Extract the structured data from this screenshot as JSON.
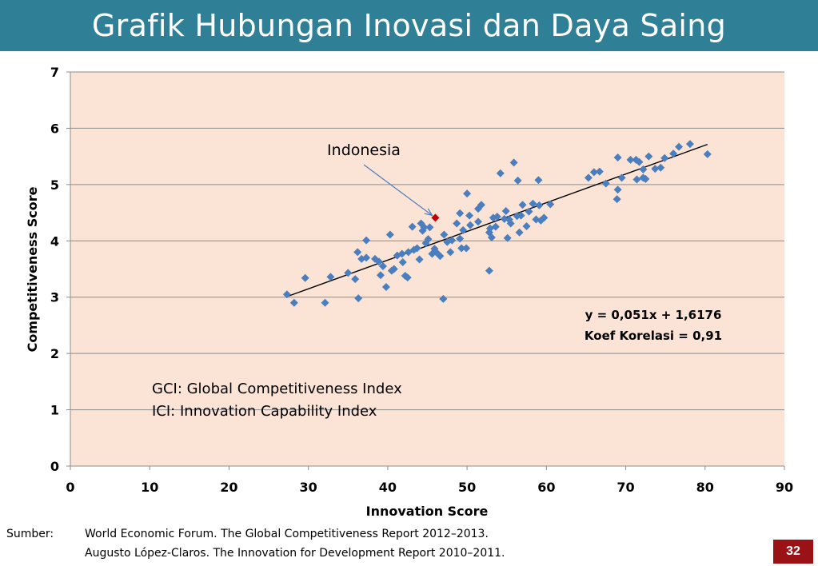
{
  "slide": {
    "title": "Grafik Hubungan Inovasi dan Daya Saing",
    "source_label": "Sumber:",
    "sources": [
      "World Economic Forum. The Global Competitiveness Report  2012–2013.",
      "Augusto López-Claros. The Innovation for Development Report 2010–2011."
    ],
    "page_number": "32"
  },
  "colors": {
    "title_bar": "#2f7f96",
    "plot_background": "#fbe4d5",
    "point": "#4a7ebf",
    "highlight_point": "#c00000",
    "trendline": "#000000",
    "arrow": "#4a7ebf",
    "page_badge": "#9b1216"
  },
  "chart_data": {
    "type": "scatter",
    "xlabel": "Innovation Score",
    "ylabel": "Competitiveness Score",
    "xlim": [
      0,
      90
    ],
    "ylim": [
      0,
      7
    ],
    "xticks": [
      "0",
      "10",
      "20",
      "30",
      "40",
      "50",
      "60",
      "70",
      "80",
      "90"
    ],
    "yticks": [
      "0",
      "1",
      "2",
      "3",
      "4",
      "5",
      "6",
      "7"
    ],
    "grid": "horizontal",
    "trendline": {
      "slope": 0.051,
      "intercept": 1.6176,
      "x_range": [
        27.3,
        80.3
      ]
    },
    "equation_text": "y = 0,051x + 1,6176",
    "correlation_text": "Koef Korelasi = 0,91",
    "annotation": {
      "label": "Indonesia",
      "x": 46.0,
      "y": 4.41
    },
    "notes": [
      "GCI: Global Competitiveness Index",
      "ICI: Innovation Capability Index"
    ],
    "points": [
      [
        27.3,
        3.05
      ],
      [
        28.2,
        2.9
      ],
      [
        29.6,
        3.34
      ],
      [
        32.1,
        2.9
      ],
      [
        32.8,
        3.36
      ],
      [
        35.0,
        3.43
      ],
      [
        35.9,
        3.32
      ],
      [
        36.2,
        3.8
      ],
      [
        36.3,
        2.98
      ],
      [
        36.7,
        3.68
      ],
      [
        37.3,
        3.7
      ],
      [
        37.3,
        4.01
      ],
      [
        38.4,
        3.68
      ],
      [
        38.9,
        3.63
      ],
      [
        39.1,
        3.39
      ],
      [
        39.4,
        3.55
      ],
      [
        39.8,
        3.18
      ],
      [
        40.3,
        4.11
      ],
      [
        40.5,
        3.47
      ],
      [
        40.8,
        3.5
      ],
      [
        41.2,
        3.74
      ],
      [
        41.8,
        3.77
      ],
      [
        41.9,
        3.62
      ],
      [
        42.2,
        3.38
      ],
      [
        42.5,
        3.35
      ],
      [
        42.6,
        3.8
      ],
      [
        43.1,
        4.25
      ],
      [
        43.3,
        3.84
      ],
      [
        43.7,
        3.87
      ],
      [
        44.0,
        3.67
      ],
      [
        44.2,
        4.31
      ],
      [
        44.4,
        4.18
      ],
      [
        44.6,
        4.24
      ],
      [
        44.8,
        3.96
      ],
      [
        45.1,
        4.03
      ],
      [
        45.3,
        4.24
      ],
      [
        45.6,
        3.77
      ],
      [
        45.9,
        3.86
      ],
      [
        46.1,
        3.8
      ],
      [
        46.6,
        3.73
      ],
      [
        47.0,
        2.97
      ],
      [
        47.1,
        4.11
      ],
      [
        47.5,
        3.98
      ],
      [
        47.9,
        3.8
      ],
      [
        48.1,
        4.01
      ],
      [
        48.7,
        4.31
      ],
      [
        49.1,
        4.04
      ],
      [
        49.1,
        4.49
      ],
      [
        49.3,
        3.87
      ],
      [
        49.5,
        4.19
      ],
      [
        49.9,
        3.87
      ],
      [
        50.0,
        4.84
      ],
      [
        50.3,
        4.45
      ],
      [
        50.4,
        4.28
      ],
      [
        51.4,
        4.34
      ],
      [
        51.4,
        4.57
      ],
      [
        51.8,
        4.64
      ],
      [
        52.8,
        3.47
      ],
      [
        52.8,
        4.15
      ],
      [
        52.9,
        4.22
      ],
      [
        53.1,
        4.06
      ],
      [
        53.3,
        4.41
      ],
      [
        53.6,
        4.25
      ],
      [
        53.8,
        4.43
      ],
      [
        54.2,
        5.2
      ],
      [
        54.7,
        4.39
      ],
      [
        54.9,
        4.53
      ],
      [
        55.1,
        4.05
      ],
      [
        55.3,
        4.38
      ],
      [
        55.5,
        4.31
      ],
      [
        55.9,
        5.39
      ],
      [
        56.3,
        4.44
      ],
      [
        56.4,
        5.07
      ],
      [
        56.6,
        4.15
      ],
      [
        56.8,
        4.45
      ],
      [
        57.0,
        4.64
      ],
      [
        57.5,
        4.26
      ],
      [
        57.8,
        4.52
      ],
      [
        58.3,
        4.66
      ],
      [
        58.7,
        4.38
      ],
      [
        59.0,
        5.08
      ],
      [
        59.1,
        4.63
      ],
      [
        59.3,
        4.36
      ],
      [
        59.7,
        4.41
      ],
      [
        60.5,
        4.65
      ],
      [
        65.3,
        5.12
      ],
      [
        66.0,
        5.22
      ],
      [
        66.7,
        5.23
      ],
      [
        67.5,
        5.02
      ],
      [
        68.9,
        4.74
      ],
      [
        69.0,
        4.91
      ],
      [
        69.0,
        5.48
      ],
      [
        69.5,
        5.12
      ],
      [
        70.6,
        5.44
      ],
      [
        71.3,
        5.44
      ],
      [
        71.4,
        5.09
      ],
      [
        71.7,
        5.4
      ],
      [
        72.2,
        5.12
      ],
      [
        72.2,
        5.27
      ],
      [
        72.5,
        5.1
      ],
      [
        72.9,
        5.5
      ],
      [
        73.7,
        5.28
      ],
      [
        74.4,
        5.3
      ],
      [
        74.9,
        5.47
      ],
      [
        76.0,
        5.55
      ],
      [
        76.7,
        5.67
      ],
      [
        78.1,
        5.72
      ],
      [
        80.3,
        5.54
      ]
    ]
  }
}
